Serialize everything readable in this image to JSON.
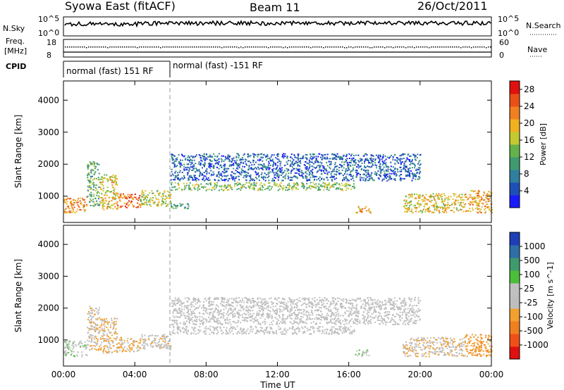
{
  "header": {
    "station": "Syowa East (fitACF)",
    "beam": "Beam 11",
    "date": "26/Oct/2011"
  },
  "noise_panel": {
    "left_label": "N.Sky",
    "right_label": "N.Search",
    "left_ticks": [
      {
        "base": "10",
        "exp": "^5"
      },
      {
        "base": "10",
        "exp": "^0"
      }
    ],
    "right_ticks": [
      {
        "base": "10",
        "exp": "^5"
      },
      {
        "base": "10",
        "exp": "^0"
      }
    ]
  },
  "freq_panel": {
    "left_label_1": "Freq.",
    "left_label_2": "[MHz]",
    "right_label": "Nave",
    "left_ticks": [
      "18",
      "8"
    ],
    "right_ticks": [
      "60",
      "0"
    ]
  },
  "cpid_panel": {
    "label": "CPID",
    "segments": [
      {
        "text": "normal (fast) 151 RF",
        "start_h": 0,
        "end_h": 6
      },
      {
        "text": "normal (fast) -151 RF",
        "start_h": 6,
        "end_h": 24
      }
    ]
  },
  "colors": {
    "power": [
      "#1a1aff",
      "#1e4fb8",
      "#2f7f9e",
      "#3f9a70",
      "#63b34a",
      "#c4c932",
      "#f0b020",
      "#f08020",
      "#e85018",
      "#e01010"
    ],
    "velocity": [
      "#e01010",
      "#f05018",
      "#f07f20",
      "#f2a030",
      "#bebebe",
      "#c0c0c0",
      "#4bbf3a",
      "#3f9a70",
      "#2f6fa8",
      "#1e3fb8"
    ]
  },
  "chart_data": [
    {
      "type": "heatmap",
      "title": "",
      "xlabel": "Time UT",
      "ylabel": "Slant Range [km]",
      "xlim": [
        0,
        24
      ],
      "ylim": [
        180,
        4600
      ],
      "x_ticks": [
        "00:00",
        "04:00",
        "08:00",
        "12:00",
        "16:00",
        "20:00",
        "00:00"
      ],
      "y_ticks": [
        "1000",
        "2000",
        "3000",
        "4000"
      ],
      "colorbar": {
        "label": "Power [dB]",
        "ticks": [
          "4",
          "8",
          "12",
          "16",
          "20",
          "24",
          "28"
        ],
        "range": [
          0,
          30
        ]
      },
      "regions": [
        {
          "t0": 0.0,
          "t1": 1.3,
          "r0": 500,
          "r1": 1000,
          "value": 22
        },
        {
          "t0": 1.3,
          "t1": 2.0,
          "r0": 700,
          "r1": 2100,
          "value": 12
        },
        {
          "t0": 2.0,
          "t1": 3.0,
          "r0": 600,
          "r1": 1700,
          "value": 18
        },
        {
          "t0": 3.0,
          "t1": 4.3,
          "r0": 650,
          "r1": 1100,
          "value": 24
        },
        {
          "t0": 4.3,
          "t1": 6.0,
          "r0": 700,
          "r1": 1200,
          "value": 16
        },
        {
          "t0": 6.0,
          "t1": 7.0,
          "r0": 600,
          "r1": 800,
          "value": 10
        },
        {
          "t0": 6.0,
          "t1": 16.3,
          "r0": 1200,
          "r1": 1450,
          "value": 14
        },
        {
          "t0": 6.0,
          "t1": 20.0,
          "r0": 1500,
          "r1": 2350,
          "value": 6
        },
        {
          "t0": 16.3,
          "t1": 17.2,
          "r0": 500,
          "r1": 700,
          "value": 20
        },
        {
          "t0": 19.0,
          "t1": 22.5,
          "r0": 500,
          "r1": 1100,
          "value": 18
        },
        {
          "t0": 22.5,
          "t1": 24.0,
          "r0": 500,
          "r1": 1200,
          "value": 20
        }
      ]
    },
    {
      "type": "heatmap",
      "title": "",
      "xlabel": "Time UT",
      "ylabel": "Slant Range [km]",
      "xlim": [
        0,
        24
      ],
      "ylim": [
        180,
        4600
      ],
      "x_ticks": [
        "00:00",
        "04:00",
        "08:00",
        "12:00",
        "16:00",
        "20:00",
        "00:00"
      ],
      "y_ticks": [
        "1000",
        "2000",
        "3000",
        "4000"
      ],
      "colorbar": {
        "label": "Velocity [m s^-1]",
        "ticks": [
          "1000",
          "500",
          "100",
          "25",
          "-25",
          "-100",
          "-500",
          "-1000"
        ],
        "range": [
          -1200,
          1200
        ]
      },
      "regions": [
        {
          "t0": 0.0,
          "t1": 1.3,
          "r0": 500,
          "r1": 1000,
          "value": 150
        },
        {
          "t0": 1.3,
          "t1": 2.0,
          "r0": 700,
          "r1": 2100,
          "value": -200
        },
        {
          "t0": 2.0,
          "t1": 3.0,
          "r0": 600,
          "r1": 1700,
          "value": -250
        },
        {
          "t0": 3.0,
          "t1": 4.3,
          "r0": 650,
          "r1": 1100,
          "value": -300
        },
        {
          "t0": 4.3,
          "t1": 6.0,
          "r0": 700,
          "r1": 1200,
          "value": -150
        },
        {
          "t0": 6.0,
          "t1": 16.3,
          "r0": 1200,
          "r1": 1450,
          "value": 0
        },
        {
          "t0": 6.0,
          "t1": 20.0,
          "r0": 1500,
          "r1": 2350,
          "value": 0
        },
        {
          "t0": 16.3,
          "t1": 17.2,
          "r0": 500,
          "r1": 700,
          "value": 200
        },
        {
          "t0": 19.0,
          "t1": 22.5,
          "r0": 500,
          "r1": 1100,
          "value": -200
        },
        {
          "t0": 22.5,
          "t1": 24.0,
          "r0": 500,
          "r1": 1200,
          "value": -400
        }
      ]
    }
  ]
}
